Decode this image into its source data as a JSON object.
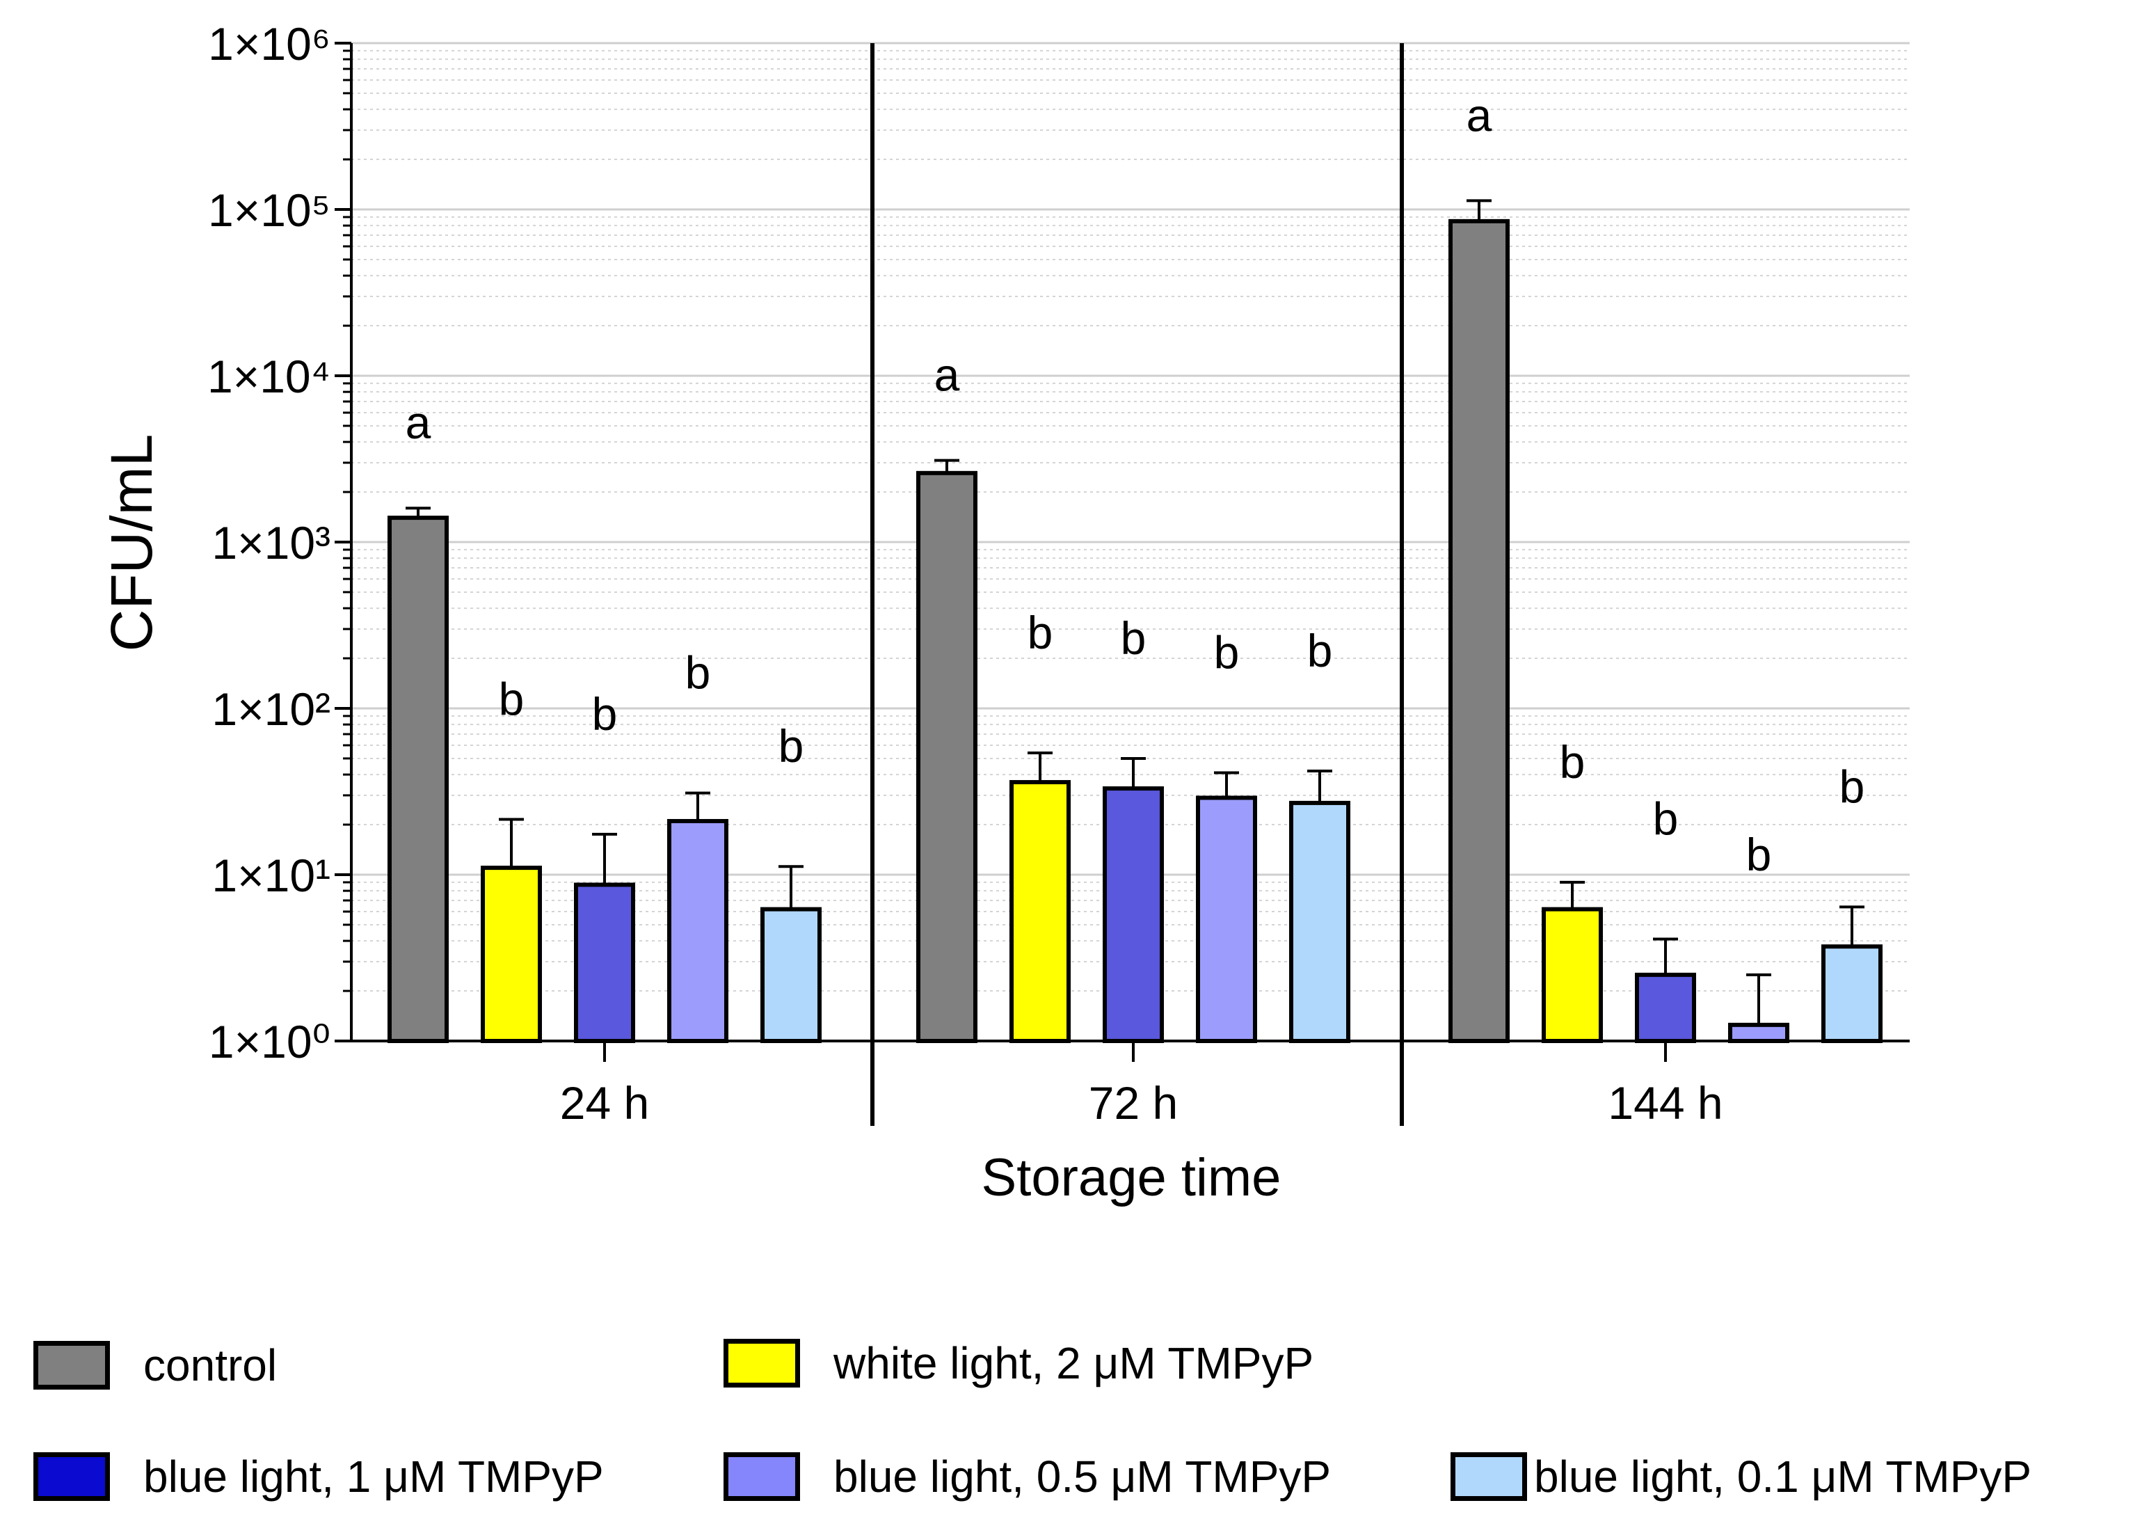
{
  "chart_data": {
    "type": "bar",
    "title": "",
    "xlabel": "Storage time",
    "ylabel": "CFU/mL",
    "yscale": "log",
    "ylim": [
      1,
      1000000
    ],
    "ytick_labels": [
      "1×10⁰",
      "1×10¹",
      "1×10²",
      "1×10³",
      "1×10⁴",
      "1×10⁵",
      "1×10⁶"
    ],
    "categories": [
      "24 h",
      "72 h",
      "144 h"
    ],
    "series": [
      {
        "name": "control",
        "color": "#808080",
        "values": [
          1400,
          2600,
          85000
        ],
        "errors_upper": [
          1600,
          3100,
          113000
        ],
        "letters": [
          "a",
          "a",
          "a"
        ]
      },
      {
        "name": "white light, 2 μM TMPyP",
        "color": "#ffff00",
        "values": [
          11,
          36,
          6.2
        ],
        "errors_upper": [
          21.5,
          54,
          9
        ],
        "letters": [
          "b",
          "b",
          "b"
        ]
      },
      {
        "name": "blue light, 1 μM TMPyP",
        "color": "#5a58dc",
        "values": [
          8.7,
          33,
          2.5
        ],
        "errors_upper": [
          17.5,
          50,
          4.1
        ],
        "letters": [
          "b",
          "b",
          "b"
        ]
      },
      {
        "name": "blue light, 0.5 μM TMPyP",
        "color": "#9c9cfc",
        "values": [
          21,
          29,
          1.25
        ],
        "errors_upper": [
          31,
          41,
          2.5
        ],
        "letters": [
          "b",
          "b",
          "b"
        ]
      },
      {
        "name": "blue light, 0.1 μM TMPyP",
        "color": "#b0d8fc",
        "values": [
          6.2,
          27,
          3.7
        ],
        "errors_upper": [
          11.2,
          42,
          6.4
        ],
        "letters": [
          "b",
          "b",
          "b"
        ]
      }
    ],
    "grid": true,
    "legend_position": "bottom"
  },
  "legend": {
    "items": [
      {
        "label": "control",
        "color": "#808080"
      },
      {
        "label": "white light, 2 μM TMPyP",
        "color": "#ffff00"
      },
      {
        "label": "blue light, 1 μM TMPyP",
        "color": "#0a0ad0"
      },
      {
        "label": "blue light, 0.5 μM TMPyP",
        "color": "#8585fc"
      },
      {
        "label": "blue light, 0.1 μM TMPyP",
        "color": "#b0d8fc"
      }
    ]
  }
}
